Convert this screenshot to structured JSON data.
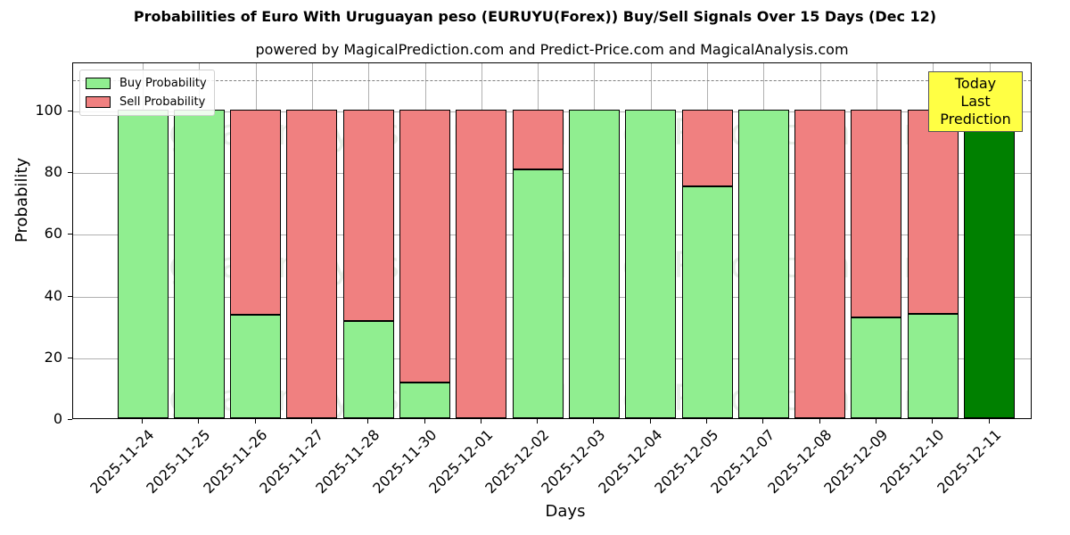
{
  "header": {
    "title": "Probabilities of Euro With Uruguayan peso (EURUYU(Forex)) Buy/Sell Signals Over 15 Days (Dec 12)",
    "subtitle": "powered by MagicalPrediction.com and Predict-Price.com and MagicalAnalysis.com"
  },
  "legend": {
    "buy_label": "Buy Probability",
    "sell_label": "Sell Probability"
  },
  "annotation": {
    "line1": "Today",
    "line2": "Last Prediction"
  },
  "watermarks": [
    "MagicalAnalysis.com",
    "MagicalPrediction.com"
  ],
  "colors": {
    "buy": "#90ee90",
    "sell": "#f08080",
    "today": "#008000",
    "annotation_bg": "#ffff44",
    "threshold_line": "#808080"
  },
  "chart_data": {
    "type": "bar",
    "stacked": true,
    "title": "Probabilities of Euro With Uruguayan peso (EURUYU(Forex)) Buy/Sell Signals Over 15 Days (Dec 12)",
    "subtitle": "powered by MagicalPrediction.com and Predict-Price.com and MagicalAnalysis.com",
    "xlabel": "Days",
    "ylabel": "Probability",
    "ylim": [
      0,
      115
    ],
    "yticks": [
      0,
      20,
      40,
      60,
      80,
      100
    ],
    "grid": true,
    "legend_position": "upper left",
    "threshold_line": 110,
    "categories": [
      "2025-11-24",
      "2025-11-25",
      "2025-11-26",
      "2025-11-27",
      "2025-11-28",
      "2025-11-30",
      "2025-12-01",
      "2025-12-02",
      "2025-12-03",
      "2025-12-04",
      "2025-12-05",
      "2025-12-07",
      "2025-12-08",
      "2025-12-09",
      "2025-12-10",
      "2025-12-11"
    ],
    "series": [
      {
        "name": "Buy Probability",
        "values": [
          100,
          100,
          33.4,
          0,
          31.6,
          11.6,
          0,
          80.5,
          100,
          100,
          75.2,
          100,
          0,
          32.6,
          33.7,
          100
        ]
      },
      {
        "name": "Sell Probability",
        "values": [
          0,
          0,
          66.6,
          100,
          68.4,
          88.4,
          100,
          19.5,
          0,
          0,
          24.8,
          0,
          100,
          67.4,
          66.3,
          0
        ]
      }
    ],
    "highlight": {
      "category": "2025-12-11",
      "label": "Today Last Prediction",
      "color": "#008000"
    }
  }
}
